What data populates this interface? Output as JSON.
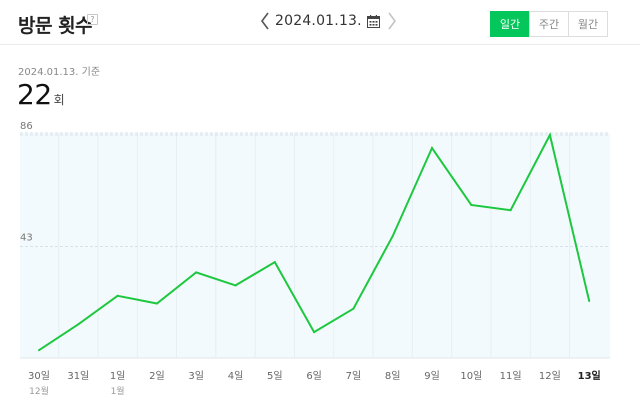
{
  "header": {
    "title": "방문 횟수",
    "help_icon": "?",
    "date": "2024.01.13.",
    "icons": {
      "prev": "chevron-left-icon",
      "next": "chevron-right-icon",
      "calendar": "calendar-icon"
    }
  },
  "period_tabs": [
    {
      "label": "일간",
      "active": true
    },
    {
      "label": "주간",
      "active": false
    },
    {
      "label": "월간",
      "active": false
    }
  ],
  "summary": {
    "basis": "2024.01.13. 기준",
    "value": "22",
    "unit": "회"
  },
  "colors": {
    "accent": "#03c75a",
    "line": "#1dc83f",
    "plot_bg": "#f3fafd",
    "grid": "#d6e3ea"
  },
  "chart_data": {
    "type": "line",
    "categories": [
      "30일",
      "31일",
      "1일",
      "2일",
      "3일",
      "4일",
      "5일",
      "6일",
      "7일",
      "8일",
      "9일",
      "10일",
      "11일",
      "12일",
      "13일"
    ],
    "sub_labels": [
      "12월",
      "",
      "1월",
      "",
      "",
      "",
      "",
      "",
      "",
      "",
      "",
      "",
      "",
      "",
      ""
    ],
    "highlight_index": 14,
    "series": [
      {
        "values": [
          3,
          13,
          24,
          21,
          33,
          28,
          37,
          10,
          19,
          47,
          81,
          59,
          57,
          86,
          22
        ]
      }
    ],
    "y_ticks": [
      43,
      86
    ],
    "y_tick_labels": [
      "43",
      "86"
    ],
    "ylim": [
      0,
      86
    ],
    "grid": true
  }
}
